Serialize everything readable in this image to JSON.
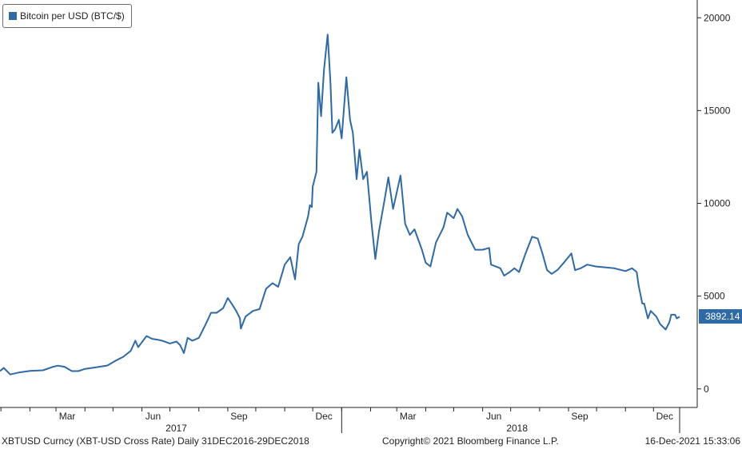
{
  "legend": {
    "label": "Bitcoin per USD (BTC/$)",
    "swatch_color": "#2e6aa6"
  },
  "footer": {
    "left": "XBTUSD Curncy (XBT-USD Cross Rate)  Daily 31DEC2016-29DEC2018",
    "center": "Copyright© 2021 Bloomberg Finance L.P.",
    "right": "16-Dec-2021 15:33:06"
  },
  "last_price": "3892.14",
  "chart_data": {
    "type": "line",
    "series": [
      {
        "name": "Bitcoin per USD (BTC/$)",
        "color": "#2e6aa6",
        "points": [
          [
            "2016-12-31",
            960
          ],
          [
            "2017-01-04",
            1130
          ],
          [
            "2017-01-11",
            780
          ],
          [
            "2017-01-20",
            880
          ],
          [
            "2017-02-01",
            970
          ],
          [
            "2017-02-15",
            1000
          ],
          [
            "2017-02-25",
            1180
          ],
          [
            "2017-03-03",
            1250
          ],
          [
            "2017-03-10",
            1190
          ],
          [
            "2017-03-18",
            960
          ],
          [
            "2017-03-25",
            960
          ],
          [
            "2017-04-01",
            1080
          ],
          [
            "2017-04-15",
            1180
          ],
          [
            "2017-04-25",
            1260
          ],
          [
            "2017-05-05",
            1550
          ],
          [
            "2017-05-12",
            1730
          ],
          [
            "2017-05-20",
            2050
          ],
          [
            "2017-05-25",
            2600
          ],
          [
            "2017-05-28",
            2250
          ],
          [
            "2017-06-06",
            2850
          ],
          [
            "2017-06-12",
            2700
          ],
          [
            "2017-06-18",
            2650
          ],
          [
            "2017-06-24",
            2580
          ],
          [
            "2017-07-01",
            2450
          ],
          [
            "2017-07-08",
            2550
          ],
          [
            "2017-07-12",
            2360
          ],
          [
            "2017-07-16",
            1930
          ],
          [
            "2017-07-20",
            2750
          ],
          [
            "2017-07-25",
            2600
          ],
          [
            "2017-08-01",
            2750
          ],
          [
            "2017-08-08",
            3450
          ],
          [
            "2017-08-14",
            4100
          ],
          [
            "2017-08-20",
            4100
          ],
          [
            "2017-08-27",
            4350
          ],
          [
            "2017-09-01",
            4900
          ],
          [
            "2017-09-05",
            4600
          ],
          [
            "2017-09-10",
            4200
          ],
          [
            "2017-09-14",
            3800
          ],
          [
            "2017-09-15",
            3250
          ],
          [
            "2017-09-20",
            3900
          ],
          [
            "2017-09-28",
            4200
          ],
          [
            "2017-10-05",
            4300
          ],
          [
            "2017-10-12",
            5400
          ],
          [
            "2017-10-19",
            5700
          ],
          [
            "2017-10-25",
            5500
          ],
          [
            "2017-11-01",
            6700
          ],
          [
            "2017-11-07",
            7100
          ],
          [
            "2017-11-12",
            5900
          ],
          [
            "2017-11-16",
            7800
          ],
          [
            "2017-11-20",
            8200
          ],
          [
            "2017-11-26",
            9300
          ],
          [
            "2017-11-28",
            9900
          ],
          [
            "2017-11-30",
            9800
          ],
          [
            "2017-12-01",
            10900
          ],
          [
            "2017-12-05",
            11700
          ],
          [
            "2017-12-07",
            16500
          ],
          [
            "2017-12-10",
            14700
          ],
          [
            "2017-12-13",
            17200
          ],
          [
            "2017-12-17",
            19100
          ],
          [
            "2017-12-20",
            16500
          ],
          [
            "2017-12-22",
            13800
          ],
          [
            "2017-12-25",
            14000
          ],
          [
            "2017-12-29",
            14500
          ],
          [
            "2018-01-01",
            13500
          ],
          [
            "2018-01-06",
            16800
          ],
          [
            "2018-01-10",
            14500
          ],
          [
            "2018-01-13",
            13800
          ],
          [
            "2018-01-17",
            11300
          ],
          [
            "2018-01-20",
            12900
          ],
          [
            "2018-01-24",
            11300
          ],
          [
            "2018-01-28",
            11700
          ],
          [
            "2018-02-02",
            8900
          ],
          [
            "2018-02-06",
            7000
          ],
          [
            "2018-02-10",
            8500
          ],
          [
            "2018-02-16",
            10200
          ],
          [
            "2018-02-20",
            11400
          ],
          [
            "2018-02-25",
            9700
          ],
          [
            "2018-03-05",
            11500
          ],
          [
            "2018-03-10",
            8900
          ],
          [
            "2018-03-15",
            8300
          ],
          [
            "2018-03-20",
            8600
          ],
          [
            "2018-03-28",
            7500
          ],
          [
            "2018-04-01",
            6800
          ],
          [
            "2018-04-06",
            6600
          ],
          [
            "2018-04-12",
            7900
          ],
          [
            "2018-04-20",
            8700
          ],
          [
            "2018-04-24",
            9500
          ],
          [
            "2018-05-01",
            9200
          ],
          [
            "2018-05-05",
            9700
          ],
          [
            "2018-05-10",
            9300
          ],
          [
            "2018-05-16",
            8300
          ],
          [
            "2018-05-24",
            7500
          ],
          [
            "2018-06-01",
            7500
          ],
          [
            "2018-06-08",
            7600
          ],
          [
            "2018-06-10",
            6700
          ],
          [
            "2018-06-20",
            6500
          ],
          [
            "2018-06-24",
            6100
          ],
          [
            "2018-06-30",
            6300
          ],
          [
            "2018-07-05",
            6500
          ],
          [
            "2018-07-10",
            6300
          ],
          [
            "2018-07-17",
            7300
          ],
          [
            "2018-07-24",
            8200
          ],
          [
            "2018-07-30",
            8100
          ],
          [
            "2018-08-04",
            7300
          ],
          [
            "2018-08-09",
            6400
          ],
          [
            "2018-08-14",
            6200
          ],
          [
            "2018-08-20",
            6400
          ],
          [
            "2018-08-27",
            6800
          ],
          [
            "2018-09-04",
            7300
          ],
          [
            "2018-09-08",
            6400
          ],
          [
            "2018-09-14",
            6500
          ],
          [
            "2018-09-21",
            6700
          ],
          [
            "2018-09-30",
            6600
          ],
          [
            "2018-10-10",
            6550
          ],
          [
            "2018-10-20",
            6500
          ],
          [
            "2018-11-01",
            6350
          ],
          [
            "2018-11-08",
            6500
          ],
          [
            "2018-11-13",
            6300
          ],
          [
            "2018-11-15",
            5600
          ],
          [
            "2018-11-19",
            4600
          ],
          [
            "2018-11-21",
            4600
          ],
          [
            "2018-11-25",
            3800
          ],
          [
            "2018-11-28",
            4200
          ],
          [
            "2018-12-04",
            3900
          ],
          [
            "2018-12-08",
            3500
          ],
          [
            "2018-12-14",
            3200
          ],
          [
            "2018-12-18",
            3600
          ],
          [
            "2018-12-20",
            4000
          ],
          [
            "2018-12-22",
            4000
          ],
          [
            "2018-12-24",
            4000
          ],
          [
            "2018-12-26",
            3800
          ],
          [
            "2018-12-29",
            3892.14
          ]
        ]
      }
    ],
    "x_range": [
      "2016-12-31",
      "2018-12-29"
    ],
    "y_axis": {
      "position": "right",
      "range": [
        -1000,
        20700
      ],
      "ticks": [
        0,
        5000,
        10000,
        15000,
        20000
      ],
      "tick_labels": [
        "0",
        "5000",
        "10000",
        "15000",
        "20000"
      ]
    },
    "x_ticks": [
      {
        "date": "2017-03-01",
        "label": "Mar"
      },
      {
        "date": "2017-06-01",
        "label": "Jun"
      },
      {
        "date": "2017-09-01",
        "label": "Sep"
      },
      {
        "date": "2017-12-01",
        "label": "Dec"
      },
      {
        "date": "2018-03-01",
        "label": "Mar"
      },
      {
        "date": "2018-06-01",
        "label": "Jun"
      },
      {
        "date": "2018-09-01",
        "label": "Sep"
      },
      {
        "date": "2018-12-01",
        "label": "Dec"
      }
    ],
    "year_labels": [
      {
        "date": "2017-07-01",
        "label": "2017"
      },
      {
        "date": "2018-07-01",
        "label": "2018"
      }
    ],
    "year_boundaries": [
      "2018-01-01"
    ],
    "grid": false,
    "legend_position": "top-left"
  }
}
